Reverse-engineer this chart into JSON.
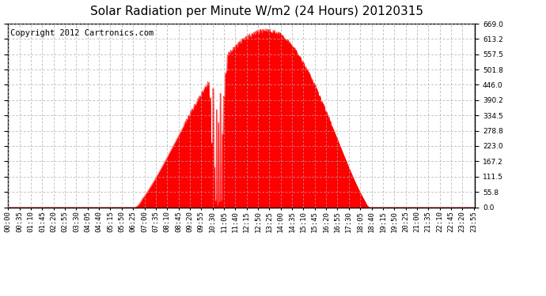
{
  "title": "Solar Radiation per Minute W/m2 (24 Hours) 20120315",
  "copyright_text": "Copyright 2012 Cartronics.com",
  "background_color": "#ffffff",
  "plot_bg_color": "#ffffff",
  "fill_color": "#ff0000",
  "line_color": "#ff0000",
  "dashed_line_color": "#ff0000",
  "grid_color": "#aaaaaa",
  "ylim": [
    0.0,
    669.0
  ],
  "yticks": [
    0.0,
    55.8,
    111.5,
    167.2,
    223.0,
    278.8,
    334.5,
    390.2,
    446.0,
    501.8,
    557.5,
    613.2,
    669.0
  ],
  "total_minutes": 1440,
  "sunrise_minute": 388,
  "sunset_minute": 1115,
  "peak_minute": 800,
  "peak_value": 645,
  "xtick_interval_minutes": 35,
  "title_fontsize": 11,
  "tick_fontsize": 6.5,
  "copyright_fontsize": 7.5
}
